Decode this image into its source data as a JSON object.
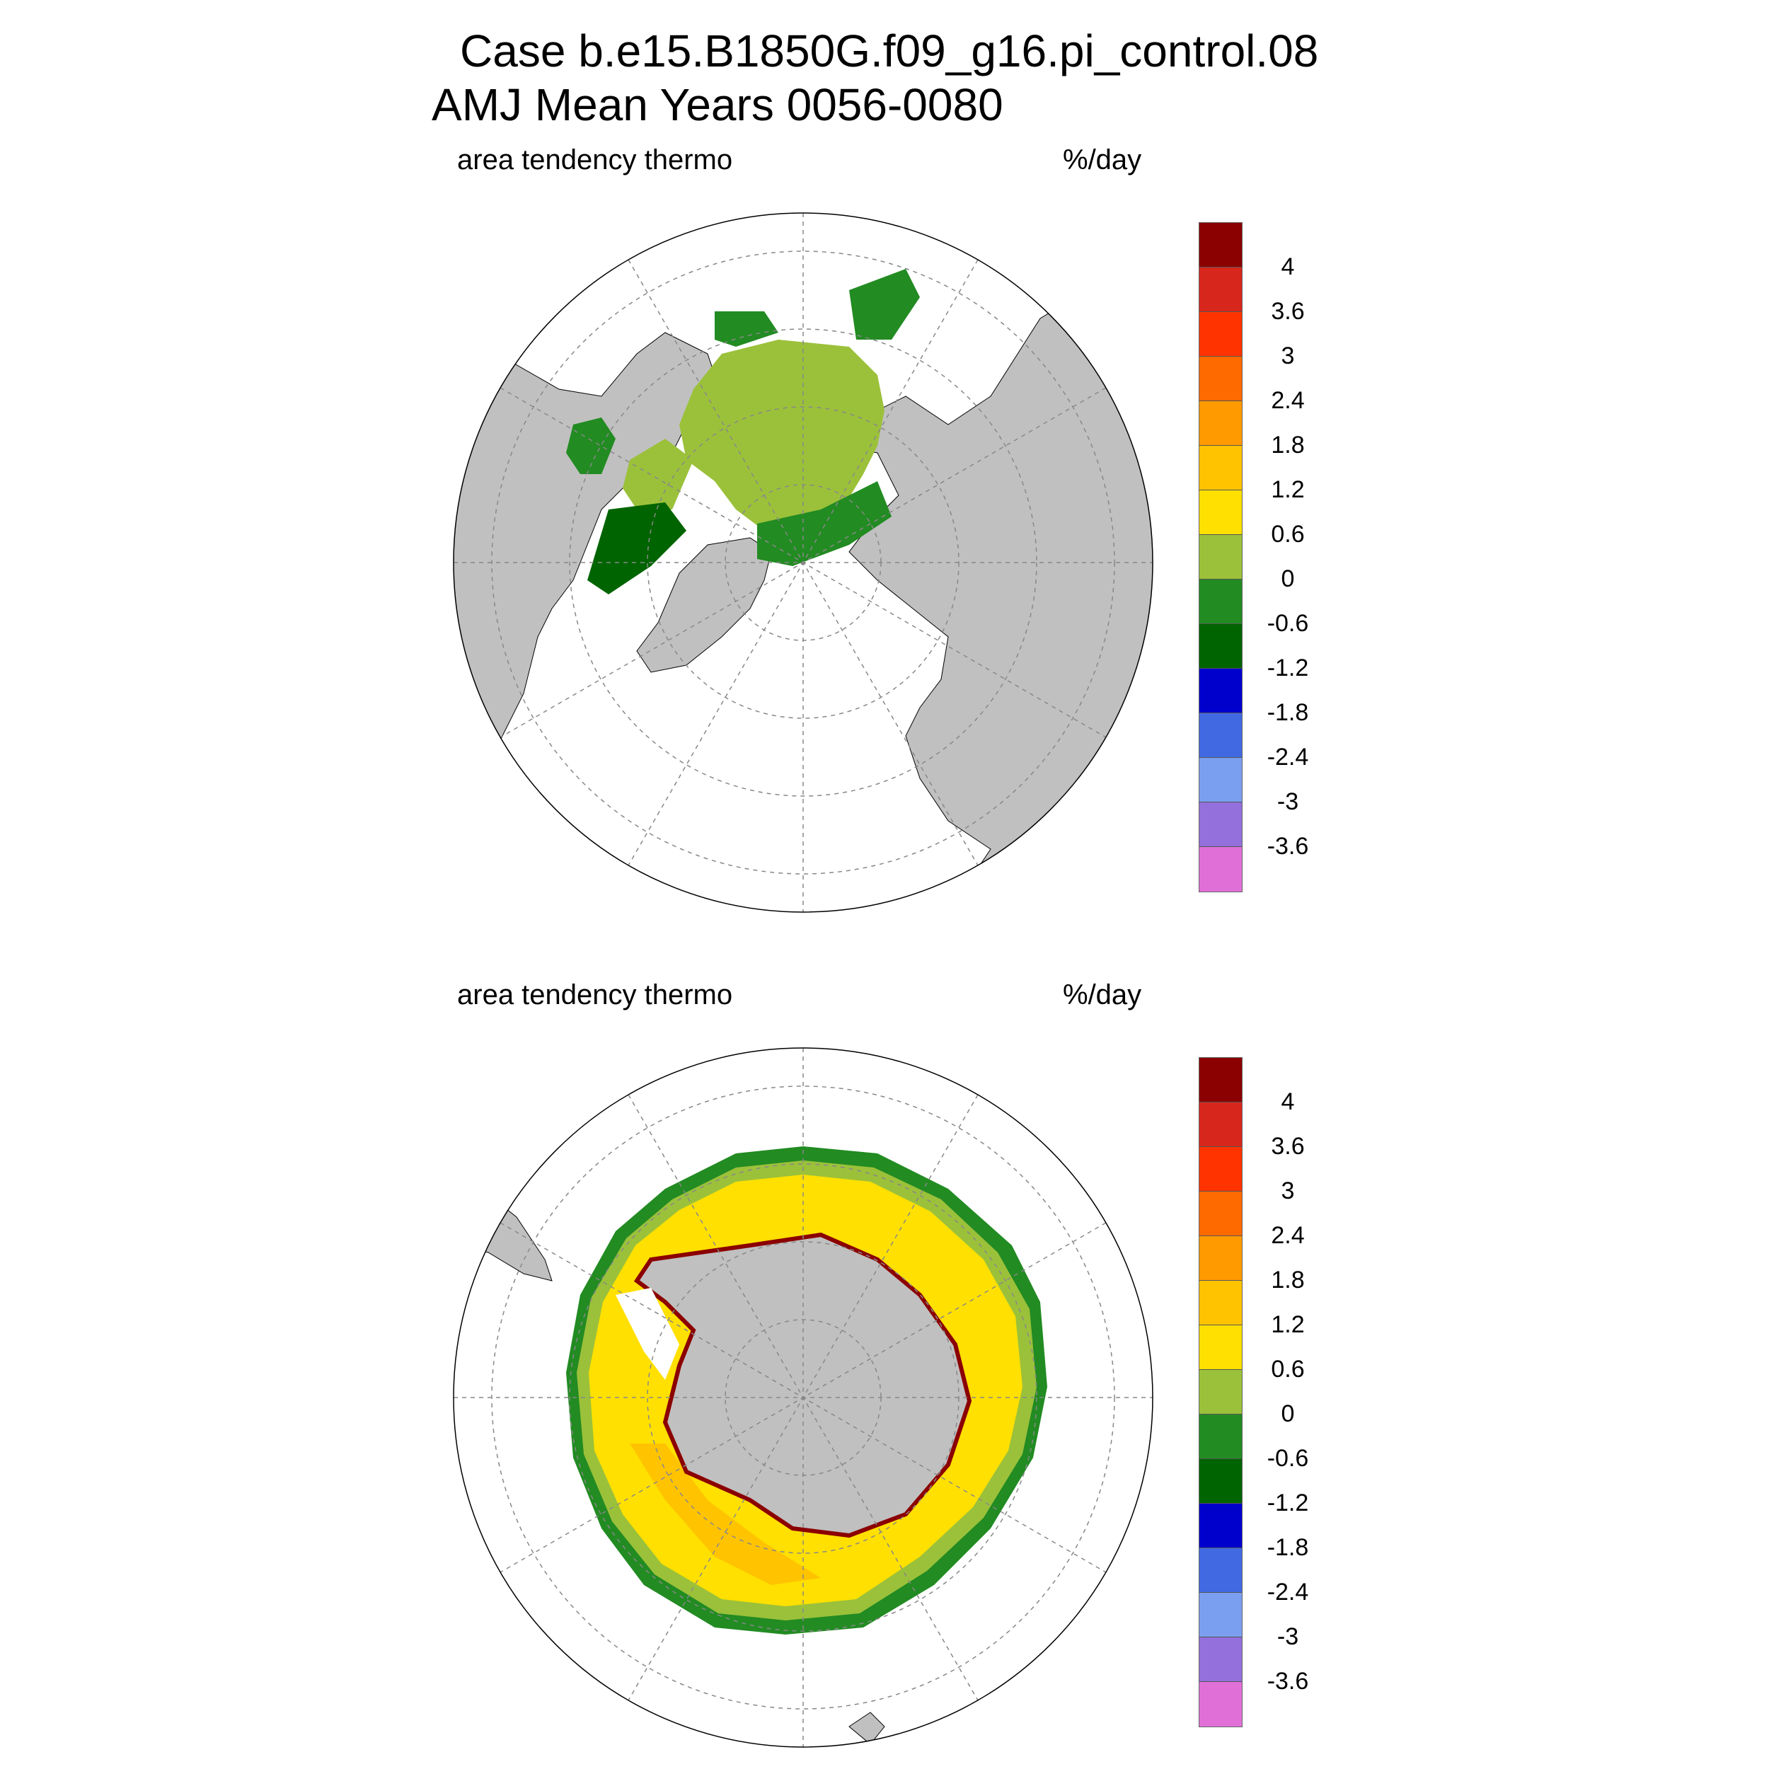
{
  "title": {
    "line1": "Case b.e15.B1850G.f09_g16.pi_control.08",
    "line2": "AMJ Mean   Years 0056-0080"
  },
  "panels": [
    {
      "id": "north",
      "left_label": "area tendency thermo",
      "right_label": "%/day",
      "hemisphere": "Northern"
    },
    {
      "id": "south",
      "left_label": "area tendency thermo",
      "right_label": "%/day",
      "hemisphere": "Southern"
    }
  ],
  "colorbar": {
    "colors": [
      "#8b0000",
      "#d7261b",
      "#ff3300",
      "#ff6a00",
      "#ff9a00",
      "#ffc300",
      "#ffe000",
      "#9bc13a",
      "#228b22",
      "#006400",
      "#0000cd",
      "#4169e1",
      "#7b9ff0",
      "#9370db",
      "#e070d8"
    ],
    "labels": [
      "4",
      "3.6",
      "3",
      "2.4",
      "1.8",
      "1.2",
      "0.6",
      "0",
      "-0.6",
      "-1.2",
      "-1.8",
      "-2.4",
      "-3",
      "-3.6"
    ]
  },
  "map_colors": {
    "land": "#c0c0c0",
    "grid": "#888888"
  }
}
